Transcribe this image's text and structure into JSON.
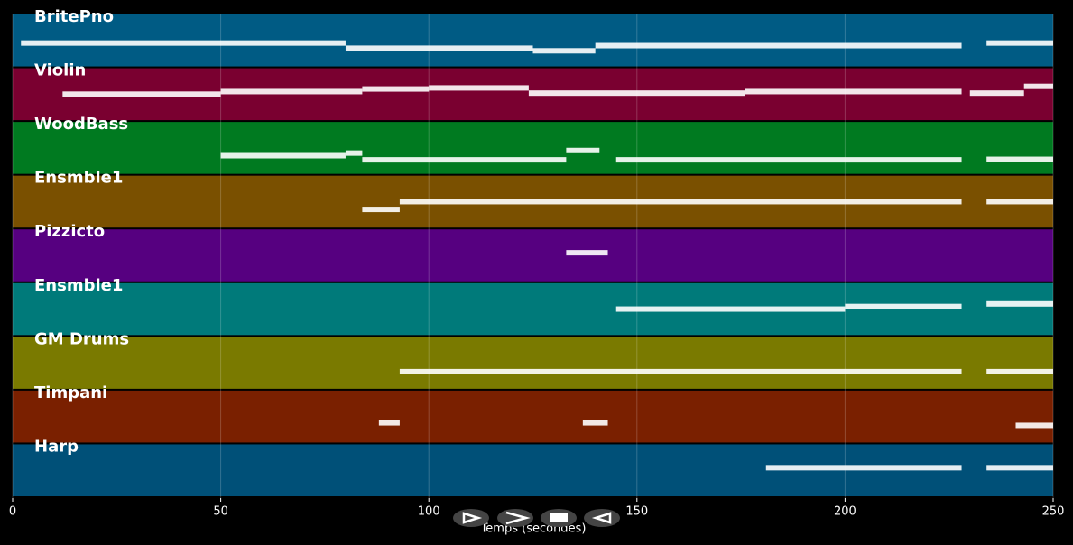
{
  "chart_data": {
    "type": "pianoroll",
    "xlabel": "Temps (secondes)",
    "xlim": [
      0,
      250
    ],
    "xticks": [
      0,
      50,
      100,
      150,
      200,
      250
    ],
    "grid": true,
    "series": [
      {
        "name": "BritePno",
        "color": "#005b84",
        "segments": [
          [
            2,
            80,
            0.45
          ],
          [
            80,
            125,
            0.35
          ],
          [
            125,
            140,
            0.3
          ],
          [
            140,
            228,
            0.4
          ],
          [
            234,
            250,
            0.45
          ]
        ]
      },
      {
        "name": "Violin",
        "color": "#7a0030",
        "segments": [
          [
            12,
            50,
            0.5
          ],
          [
            50,
            84,
            0.55
          ],
          [
            84,
            100,
            0.6
          ],
          [
            100,
            124,
            0.62
          ],
          [
            124,
            176,
            0.52
          ],
          [
            176,
            228,
            0.55
          ],
          [
            230,
            243,
            0.52
          ],
          [
            243,
            250,
            0.65
          ]
        ]
      },
      {
        "name": "WoodBass",
        "color": "#007a20",
        "segments": [
          [
            50,
            80,
            0.35
          ],
          [
            80,
            84,
            0.4
          ],
          [
            84,
            133,
            0.27
          ],
          [
            133,
            141,
            0.45
          ],
          [
            145,
            228,
            0.27
          ],
          [
            234,
            250,
            0.28
          ]
        ]
      },
      {
        "name": "Ensmble1",
        "color": "#7a5000",
        "segments": [
          [
            84,
            93,
            0.35
          ],
          [
            93,
            228,
            0.5
          ],
          [
            234,
            250,
            0.5
          ]
        ]
      },
      {
        "name": "Pizzicto",
        "color": "#560080",
        "segments": [
          [
            133,
            143,
            0.55
          ]
        ]
      },
      {
        "name": "Ensmble1",
        "color": "#007a7a",
        "segments": [
          [
            145,
            200,
            0.5
          ],
          [
            200,
            228,
            0.55
          ],
          [
            234,
            250,
            0.6
          ]
        ]
      },
      {
        "name": "GM Drums",
        "color": "#7a7a00",
        "segments": [
          [
            93,
            228,
            0.33
          ],
          [
            234,
            250,
            0.33
          ]
        ]
      },
      {
        "name": "Timpani",
        "color": "#7a2000",
        "segments": [
          [
            88,
            93,
            0.38
          ],
          [
            137,
            143,
            0.38
          ],
          [
            241,
            250,
            0.33
          ]
        ]
      },
      {
        "name": "Harp",
        "color": "#005078",
        "segments": [
          [
            181,
            228,
            0.55
          ],
          [
            234,
            250,
            0.55
          ]
        ]
      }
    ]
  }
}
